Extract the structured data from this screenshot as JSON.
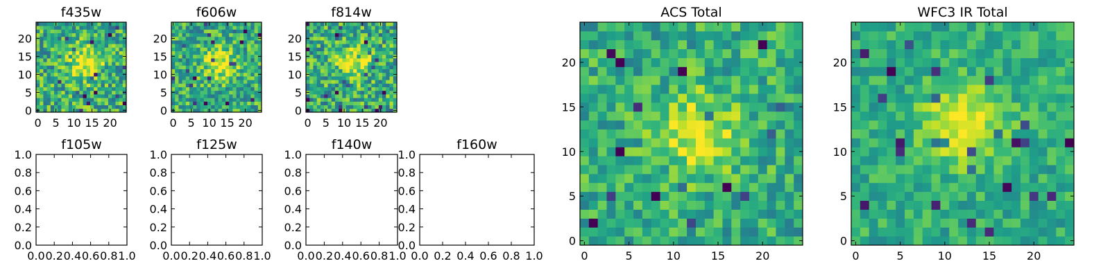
{
  "chart_data": [
    {
      "type": "heatmap",
      "title": "f435w",
      "grid_size": 25,
      "xlim": [
        -0.5,
        24.5
      ],
      "ylim": [
        -0.5,
        24.5
      ],
      "xticks": [
        0,
        5,
        10,
        15,
        20
      ],
      "yticks": [
        0,
        5,
        10,
        15,
        20
      ],
      "colormap": "viridis",
      "source_peak": [
        13,
        13
      ],
      "noise": 0.55
    },
    {
      "type": "heatmap",
      "title": "f606w",
      "grid_size": 25,
      "xlim": [
        -0.5,
        24.5
      ],
      "ylim": [
        -0.5,
        24.5
      ],
      "xticks": [
        0,
        5,
        10,
        15,
        20
      ],
      "yticks": [
        0,
        5,
        10,
        15,
        20
      ],
      "colormap": "viridis",
      "source_peak": [
        13,
        13
      ],
      "noise": 0.5
    },
    {
      "type": "heatmap",
      "title": "f814w",
      "grid_size": 25,
      "xlim": [
        -0.5,
        24.5
      ],
      "ylim": [
        -0.5,
        24.5
      ],
      "xticks": [
        0,
        5,
        10,
        15,
        20
      ],
      "yticks": [
        0,
        5,
        10,
        15,
        20
      ],
      "colormap": "viridis",
      "source_peak": [
        13,
        13
      ],
      "noise": 0.55
    },
    {
      "type": "empty",
      "title": "f105w",
      "xlim": [
        0.0,
        1.0
      ],
      "ylim": [
        0.0,
        1.0
      ],
      "xticks": [
        "0.0",
        "0.2",
        "0.4",
        "0.6",
        "0.8",
        "1.0"
      ],
      "yticks": [
        "0.0",
        "0.2",
        "0.4",
        "0.6",
        "0.8",
        "1.0"
      ]
    },
    {
      "type": "empty",
      "title": "f125w",
      "xlim": [
        0.0,
        1.0
      ],
      "ylim": [
        0.0,
        1.0
      ],
      "xticks": [
        "0.0",
        "0.2",
        "0.4",
        "0.6",
        "0.8",
        "1.0"
      ],
      "yticks": [
        "0.0",
        "0.2",
        "0.4",
        "0.6",
        "0.8",
        "1.0"
      ]
    },
    {
      "type": "empty",
      "title": "f140w",
      "xlim": [
        0.0,
        1.0
      ],
      "ylim": [
        0.0,
        1.0
      ],
      "xticks": [
        "0.0",
        "0.2",
        "0.4",
        "0.6",
        "0.8",
        "1.0"
      ],
      "yticks": [
        "0.0",
        "0.2",
        "0.4",
        "0.6",
        "0.8",
        "1.0"
      ]
    },
    {
      "type": "empty",
      "title": "f160w",
      "xlim": [
        0.0,
        1.0
      ],
      "ylim": [
        0.0,
        1.0
      ],
      "xticks": [
        "0.0",
        "0.2",
        "0.4",
        "0.6",
        "0.8",
        "1.0"
      ],
      "yticks": [
        "0.0",
        "0.2",
        "0.4",
        "0.6",
        "0.8",
        "1.0"
      ]
    },
    {
      "type": "heatmap",
      "title": "ACS Total",
      "grid_size": 25,
      "xlim": [
        -0.5,
        24.5
      ],
      "ylim": [
        -0.5,
        24.5
      ],
      "xticks": [
        0,
        5,
        10,
        15,
        20
      ],
      "yticks": [
        0,
        5,
        10,
        15,
        20
      ],
      "colormap": "viridis",
      "source_peak": [
        13,
        12
      ],
      "noise": 0.4
    },
    {
      "type": "heatmap",
      "title": "WFC3 IR Total",
      "grid_size": 25,
      "xlim": [
        -0.5,
        24.5
      ],
      "ylim": [
        -0.5,
        24.5
      ],
      "xticks": [
        0,
        5,
        10,
        15,
        20
      ],
      "yticks": [
        0,
        5,
        10,
        15,
        20
      ],
      "colormap": "viridis",
      "source_peak": [
        12,
        13
      ],
      "noise": 0.3
    }
  ]
}
